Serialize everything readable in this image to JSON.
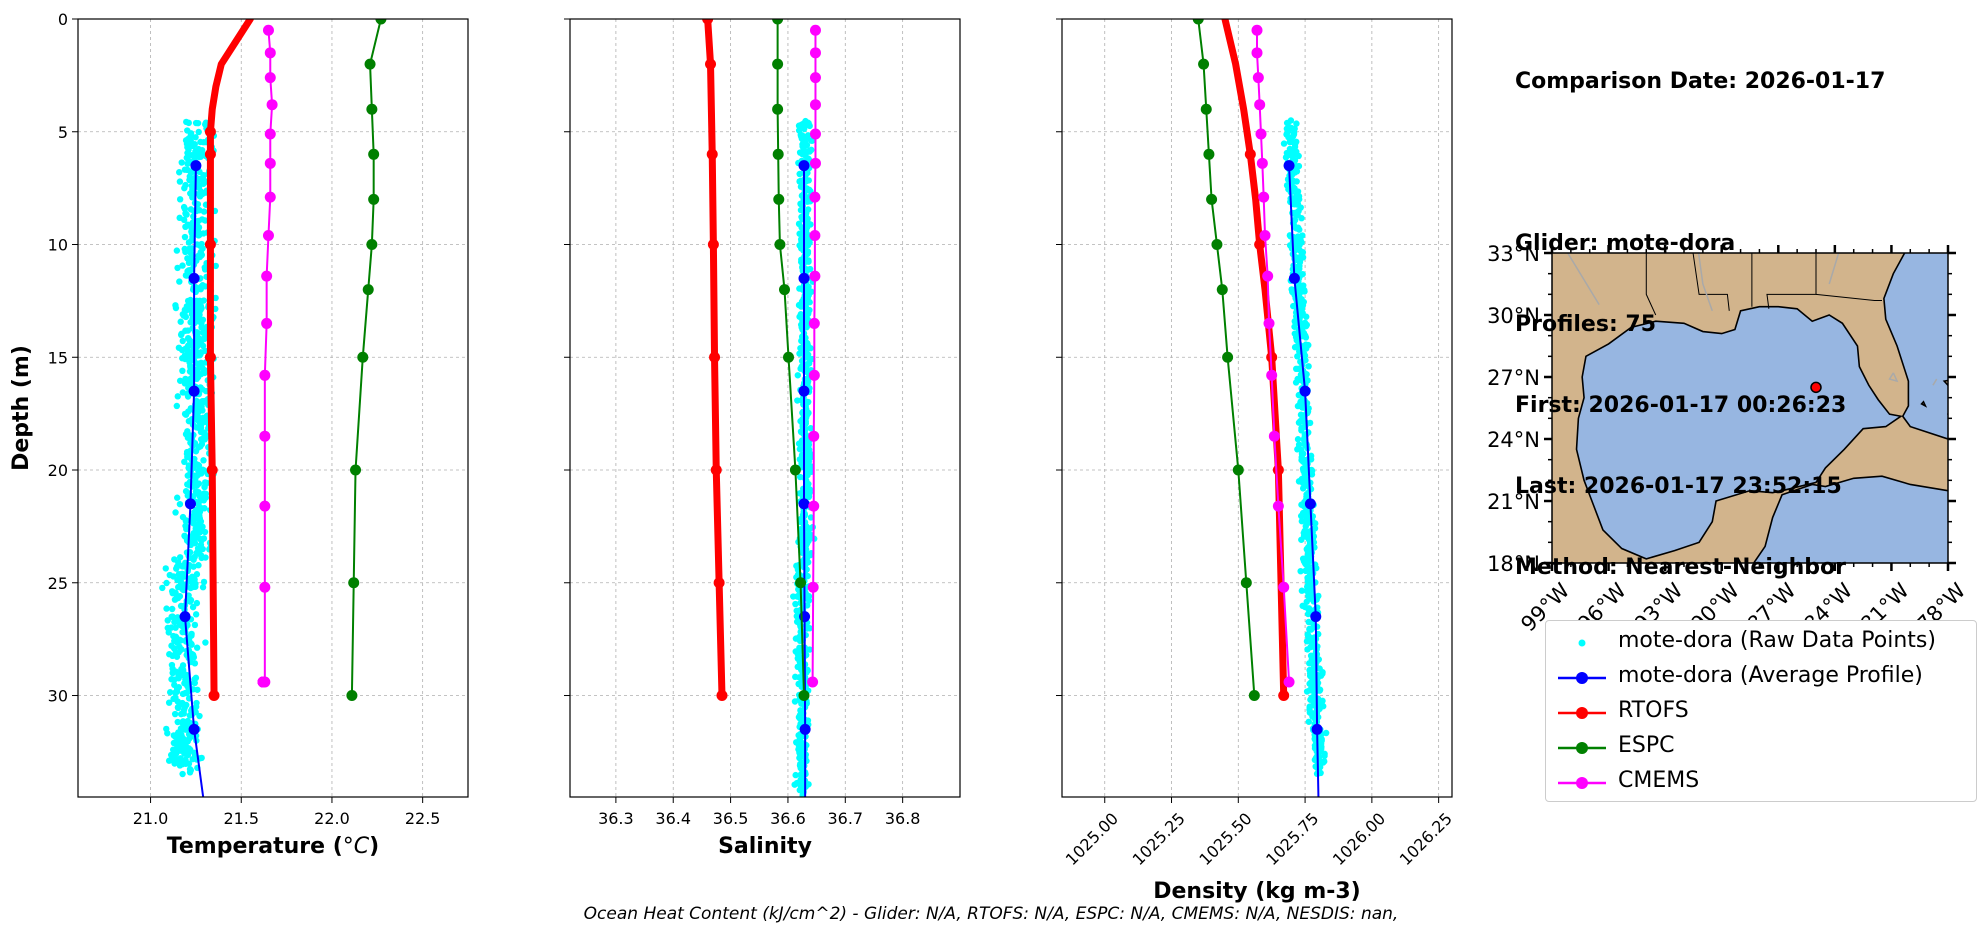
{
  "info": {
    "comparison_date": "Comparison Date: 2026-01-17",
    "glider": "Glider: mote-dora",
    "profiles": "Profiles: 75",
    "first": "First: 2026-01-17 00:26:23",
    "last": "Last: 2026-01-17 23:52:15",
    "method": "Method: Nearest-Neighbor"
  },
  "footer": "Ocean Heat Content (kJ/cm^2) - Glider: N/A,  RTOFS: N/A,  ESPC: N/A,  CMEMS: N/A,  NESDIS: nan,",
  "colors": {
    "raw": "#00ffff",
    "avg": "#0000ff",
    "rtofs": "#ff0000",
    "espc": "#008000",
    "cmems": "#ff00ff",
    "land": "#d2b48c",
    "ocean": "#97b6e1",
    "grid": "#b0b0b0"
  },
  "legend": [
    {
      "label": "mote-dora (Raw Data Points)",
      "key": "raw",
      "style": "dot"
    },
    {
      "label": "mote-dora (Average Profile)",
      "key": "avg",
      "style": "line-marker"
    },
    {
      "label": "RTOFS",
      "key": "rtofs",
      "style": "line-marker"
    },
    {
      "label": "ESPC",
      "key": "espc",
      "style": "line-marker"
    },
    {
      "label": "CMEMS",
      "key": "cmems",
      "style": "line-marker"
    }
  ],
  "map": {
    "lat_ticks": [
      "33°N",
      "30°N",
      "27°N",
      "24°N",
      "21°N",
      "18°N"
    ],
    "lon_ticks": [
      "99°W",
      "96°W",
      "93°W",
      "90°W",
      "87°W",
      "84°W",
      "81°W",
      "78°W"
    ],
    "extent": {
      "lon_min": -99,
      "lon_max": -78,
      "lat_min": 18,
      "lat_max": 33
    },
    "glider_marker": {
      "lon": -85.0,
      "lat": 26.5
    }
  },
  "chart_data": [
    {
      "type": "line",
      "xlabel": "Temperature (",
      "xlabel_unit": "°C",
      "ylabel": "Depth (m)",
      "xlim": [
        20.6,
        22.75
      ],
      "ylim": [
        34.5,
        0
      ],
      "x_ticks": [
        "21.0",
        "21.5",
        "22.0",
        "22.5"
      ],
      "x_tick_values": [
        21.0,
        21.5,
        22.0,
        22.5
      ],
      "y_ticks": [
        "0",
        "5",
        "10",
        "15",
        "20",
        "25",
        "30"
      ],
      "y_tick_values": [
        0,
        5,
        10,
        15,
        20,
        25,
        30
      ],
      "grid": true,
      "raw_points": {
        "depth_range": [
          4.5,
          33.5
        ],
        "x_center": 21.25,
        "x_spread": 0.1,
        "x_center_deep": 21.18,
        "count": 900
      },
      "series": [
        {
          "name": "mote-dora (Average Profile)",
          "key": "avg",
          "x": [
            21.25,
            21.24,
            21.24,
            21.22,
            21.19,
            21.24,
            21.29
          ],
          "y": [
            6.5,
            11.5,
            16.5,
            21.5,
            26.5,
            31.5,
            34.5
          ],
          "markers": [
            true,
            true,
            true,
            true,
            true,
            true,
            false
          ],
          "width": 2
        },
        {
          "name": "RTOFS",
          "key": "rtofs",
          "x": [
            21.55,
            21.47,
            21.39,
            21.36,
            21.34,
            21.33,
            21.33,
            21.33,
            21.33,
            21.33,
            21.33,
            21.34,
            21.35
          ],
          "y": [
            0,
            1,
            2,
            3,
            4,
            5,
            6,
            8,
            10,
            12,
            15,
            20,
            30
          ],
          "markers": "sparse",
          "width": 7
        },
        {
          "name": "ESPC",
          "key": "espc",
          "x": [
            22.27,
            22.21,
            22.22,
            22.23,
            22.23,
            22.22,
            22.2,
            22.17,
            22.13,
            22.12,
            22.11
          ],
          "y": [
            0,
            2,
            4,
            6,
            8,
            10,
            12,
            15,
            20,
            25,
            30
          ],
          "markers": true,
          "width": 2
        },
        {
          "name": "CMEMS",
          "key": "cmems",
          "x": [
            21.65,
            21.66,
            21.66,
            21.67,
            21.66,
            21.66,
            21.66,
            21.65,
            21.64,
            21.64,
            21.63,
            21.63,
            21.63,
            21.63,
            21.63,
            21.62,
            21.62,
            21.62,
            21.62,
            21.62
          ],
          "y": [
            0.5,
            1.5,
            2.6,
            3.8,
            5.1,
            6.4,
            7.9,
            9.6,
            11.4,
            13.5,
            15.8,
            18.5,
            21.6,
            25.2,
            29.4,
            29.4,
            29.4,
            29.4,
            29.4,
            29.4
          ],
          "markers": true,
          "width": 2
        }
      ]
    },
    {
      "type": "line",
      "xlabel": "Salinity",
      "xlim": [
        36.22,
        36.9
      ],
      "ylim": [
        34.5,
        0
      ],
      "x_ticks": [
        "36.3",
        "36.4",
        "36.5",
        "36.6",
        "36.7",
        "36.8"
      ],
      "x_tick_values": [
        36.3,
        36.4,
        36.5,
        36.6,
        36.7,
        36.8
      ],
      "grid": true,
      "raw_points": {
        "depth_range": [
          4.5,
          34.5
        ],
        "x_center": 36.63,
        "x_spread": 0.012,
        "x_center_deep": 36.625,
        "count": 700
      },
      "series": [
        {
          "name": "mote-dora (Average Profile)",
          "key": "avg",
          "x": [
            36.628,
            36.628,
            36.628,
            36.628,
            36.629,
            36.63,
            36.63
          ],
          "y": [
            6.5,
            11.5,
            16.5,
            21.5,
            26.5,
            31.5,
            34.5
          ],
          "markers": [
            true,
            true,
            true,
            true,
            true,
            true,
            false
          ],
          "width": 2
        },
        {
          "name": "RTOFS",
          "key": "rtofs",
          "x": [
            36.46,
            36.465,
            36.468,
            36.47,
            36.472,
            36.475,
            36.48,
            36.485
          ],
          "y": [
            0,
            2,
            6,
            10,
            15,
            20,
            25,
            30
          ],
          "markers": true,
          "width": 7
        },
        {
          "name": "ESPC",
          "key": "espc",
          "x": [
            36.582,
            36.582,
            36.582,
            36.583,
            36.584,
            36.586,
            36.594,
            36.601,
            36.613,
            36.622,
            36.628
          ],
          "y": [
            0,
            2,
            4,
            6,
            8,
            10,
            12,
            15,
            20,
            25,
            30
          ],
          "markers": true,
          "width": 2
        },
        {
          "name": "CMEMS",
          "key": "cmems",
          "x": [
            36.648,
            36.648,
            36.648,
            36.648,
            36.648,
            36.648,
            36.647,
            36.647,
            36.647,
            36.646,
            36.646,
            36.645,
            36.645,
            36.644,
            36.643
          ],
          "y": [
            0.5,
            1.5,
            2.6,
            3.8,
            5.1,
            6.4,
            7.9,
            9.6,
            11.4,
            13.5,
            15.8,
            18.5,
            21.6,
            25.2,
            29.4
          ],
          "markers": true,
          "width": 2
        }
      ]
    },
    {
      "type": "line",
      "xlabel": "Density (kg m-3)",
      "xlim": [
        1024.84,
        1026.3
      ],
      "ylim": [
        34.5,
        0
      ],
      "x_ticks": [
        "1025.00",
        "1025.25",
        "1025.50",
        "1025.75",
        "1026.00",
        "1026.25"
      ],
      "x_tick_values": [
        1025.0,
        1025.25,
        1025.5,
        1025.75,
        1026.0,
        1026.25
      ],
      "grid": true,
      "raw_points": {
        "depth_range": [
          4.5,
          33.5
        ],
        "x_center_top": 1025.7,
        "x_center_bottom": 1025.8,
        "x_spread": 0.028,
        "count": 700
      },
      "series": [
        {
          "name": "mote-dora (Average Profile)",
          "key": "avg",
          "x": [
            1025.69,
            1025.71,
            1025.75,
            1025.77,
            1025.79,
            1025.795,
            1025.8
          ],
          "y": [
            6.5,
            11.5,
            16.5,
            21.5,
            26.5,
            31.5,
            34.5
          ],
          "markers": [
            true,
            true,
            true,
            true,
            true,
            true,
            false
          ],
          "width": 2
        },
        {
          "name": "RTOFS",
          "key": "rtofs",
          "x": [
            1025.45,
            1025.49,
            1025.52,
            1025.545,
            1025.565,
            1025.58,
            1025.6,
            1025.625,
            1025.65,
            1025.67
          ],
          "y": [
            0,
            2,
            4,
            6,
            8,
            10,
            12,
            15,
            20,
            30
          ],
          "markers": "sparse",
          "width": 7
        },
        {
          "name": "ESPC",
          "key": "espc",
          "x": [
            1025.35,
            1025.37,
            1025.38,
            1025.39,
            1025.4,
            1025.42,
            1025.44,
            1025.46,
            1025.5,
            1025.53,
            1025.56
          ],
          "y": [
            0,
            2,
            4,
            6,
            8,
            10,
            12,
            15,
            20,
            25,
            30
          ],
          "markers": true,
          "width": 2
        },
        {
          "name": "CMEMS",
          "key": "cmems",
          "x": [
            1025.57,
            1025.57,
            1025.575,
            1025.58,
            1025.585,
            1025.59,
            1025.595,
            1025.6,
            1025.61,
            1025.615,
            1025.625,
            1025.635,
            1025.65,
            1025.67,
            1025.69
          ],
          "y": [
            0.5,
            1.5,
            2.6,
            3.8,
            5.1,
            6.4,
            7.9,
            9.6,
            11.4,
            13.5,
            15.8,
            18.5,
            21.6,
            25.2,
            29.4
          ],
          "markers": true,
          "width": 2
        }
      ]
    }
  ]
}
